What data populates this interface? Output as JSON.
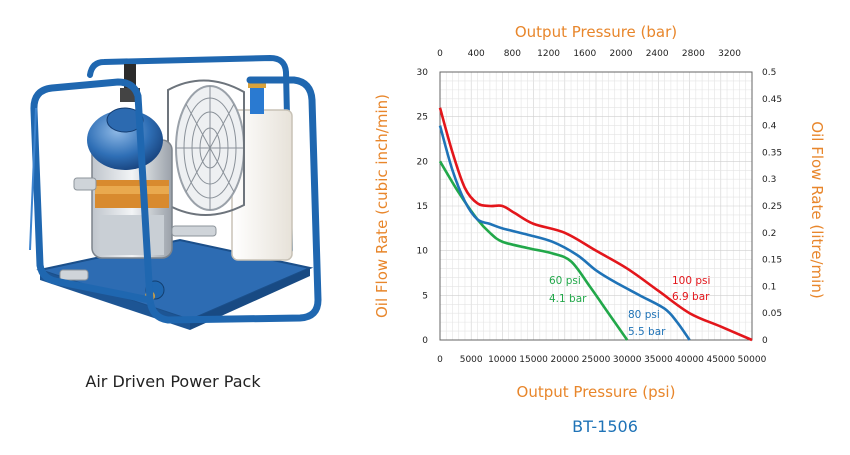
{
  "product": {
    "caption": "Air Driven Power Pack",
    "model": "BT-1506"
  },
  "colors": {
    "axis_title": "#e8862b",
    "s60": "#22a84a",
    "s80": "#1f73b7",
    "s100": "#e3161b",
    "frame": "#1f67b0"
  },
  "chart_data": {
    "type": "line",
    "title": "",
    "xlabel": "Output Pressure (psi)",
    "x2label": "Output Pressure (bar)",
    "ylabel": "Oil Flow Rate (cubic inch/min)",
    "y2label": "Oil Flow Rate (litre/min)",
    "xlim": [
      0,
      50000
    ],
    "ylim": [
      0,
      30
    ],
    "x2lim": [
      0,
      3448
    ],
    "y2lim": [
      0,
      0.5
    ],
    "xticks": [
      "0",
      "5000",
      "10000",
      "15000",
      "20000",
      "25000",
      "30000",
      "35000",
      "40000",
      "45000",
      "50000"
    ],
    "x2ticks": [
      "0",
      "400",
      "800",
      "1200",
      "1600",
      "2000",
      "2400",
      "2800",
      "3200"
    ],
    "yticks": [
      "0",
      "5",
      "10",
      "15",
      "20",
      "25",
      "30"
    ],
    "y2ticks": [
      "0",
      "0.05",
      "0.1",
      "0.15",
      "0.2",
      "0.25",
      "0.3",
      "0.35",
      "0.4",
      "0.45",
      "0.5"
    ],
    "grid": true,
    "series": [
      {
        "name": "60 psi",
        "label_line1": "60 psi",
        "label_line2": "4.1 bar",
        "color": "#22a84a",
        "x": [
          0,
          3000,
          6000,
          8000,
          10000,
          14000,
          18000,
          21000,
          24000,
          27000,
          30000
        ],
        "y": [
          20,
          16.5,
          13.5,
          12,
          11,
          10.3,
          9.7,
          8.8,
          6,
          3,
          0
        ]
      },
      {
        "name": "80 psi",
        "label_line1": "80 psi",
        "label_line2": "5.5 bar",
        "color": "#1f73b7",
        "x": [
          0,
          2000,
          4000,
          6000,
          8000,
          10000,
          14000,
          18000,
          22000,
          25000,
          28000,
          32000,
          36000,
          38000,
          40000
        ],
        "y": [
          24,
          19,
          15.5,
          13.5,
          13,
          12.5,
          11.8,
          11,
          9.5,
          7.8,
          6.5,
          5,
          3.5,
          2,
          0
        ]
      },
      {
        "name": "100 psi",
        "label_line1": "100 psi",
        "label_line2": "6.9 bar",
        "color": "#e3161b",
        "x": [
          0,
          2000,
          4000,
          6000,
          8000,
          10000,
          12000,
          15000,
          20000,
          25000,
          30000,
          35000,
          40000,
          45000,
          50000
        ],
        "y": [
          26,
          21,
          17,
          15.3,
          15,
          15,
          14.2,
          13,
          12,
          10,
          8,
          5.5,
          3,
          1.5,
          0
        ]
      }
    ]
  }
}
